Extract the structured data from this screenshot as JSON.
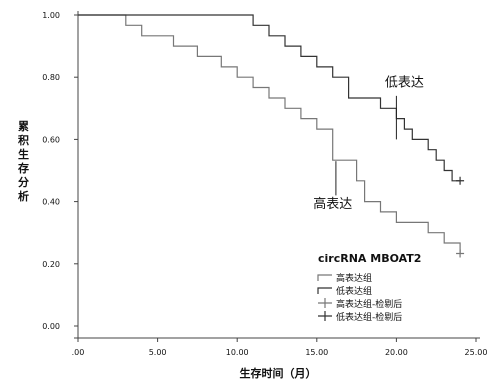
{
  "chart_data": {
    "type": "line",
    "step": true,
    "xlabel": "生存时间（月）",
    "ylabel": "累积生存分析",
    "xlim": [
      0,
      25
    ],
    "ylim": [
      0,
      1
    ],
    "x_ticks": [
      ".00",
      "5.00",
      "10.00",
      "15.00",
      "20.00",
      "25.00"
    ],
    "y_ticks": [
      "0.00",
      "0.20",
      "0.40",
      "0.60",
      "0.80",
      "1.00"
    ],
    "grid": false,
    "series": [
      {
        "name": "高表达组",
        "color": "#777777",
        "points": [
          [
            0,
            1.0
          ],
          [
            3.0,
            1.0
          ],
          [
            3.0,
            0.967
          ],
          [
            4.0,
            0.967
          ],
          [
            4.0,
            0.933
          ],
          [
            6.0,
            0.933
          ],
          [
            6.0,
            0.9
          ],
          [
            7.5,
            0.9
          ],
          [
            7.5,
            0.867
          ],
          [
            9.0,
            0.867
          ],
          [
            9.0,
            0.833
          ],
          [
            10.0,
            0.833
          ],
          [
            10.0,
            0.8
          ],
          [
            11.0,
            0.8
          ],
          [
            11.0,
            0.767
          ],
          [
            12.0,
            0.767
          ],
          [
            12.0,
            0.733
          ],
          [
            13.0,
            0.733
          ],
          [
            13.0,
            0.7
          ],
          [
            14.0,
            0.7
          ],
          [
            14.0,
            0.667
          ],
          [
            15.0,
            0.667
          ],
          [
            15.0,
            0.633
          ],
          [
            16.0,
            0.633
          ],
          [
            16.0,
            0.533
          ],
          [
            17.5,
            0.533
          ],
          [
            17.5,
            0.467
          ],
          [
            18.0,
            0.467
          ],
          [
            18.0,
            0.4
          ],
          [
            19.0,
            0.4
          ],
          [
            19.0,
            0.367
          ],
          [
            20.0,
            0.367
          ],
          [
            20.0,
            0.333
          ],
          [
            22.0,
            0.333
          ],
          [
            22.0,
            0.3
          ],
          [
            23.0,
            0.3
          ],
          [
            23.0,
            0.267
          ],
          [
            24.0,
            0.267
          ],
          [
            24.0,
            0.233
          ]
        ],
        "censored": [
          [
            24.0,
            0.233
          ]
        ]
      },
      {
        "name": "低表达组",
        "color": "#333333",
        "points": [
          [
            0,
            1.0
          ],
          [
            11.0,
            1.0
          ],
          [
            11.0,
            0.967
          ],
          [
            12.0,
            0.967
          ],
          [
            12.0,
            0.933
          ],
          [
            13.0,
            0.933
          ],
          [
            13.0,
            0.9
          ],
          [
            14.0,
            0.9
          ],
          [
            14.0,
            0.867
          ],
          [
            15.0,
            0.867
          ],
          [
            15.0,
            0.833
          ],
          [
            16.0,
            0.833
          ],
          [
            16.0,
            0.8
          ],
          [
            17.0,
            0.8
          ],
          [
            17.0,
            0.733
          ],
          [
            19.0,
            0.733
          ],
          [
            19.0,
            0.7
          ],
          [
            20.0,
            0.7
          ],
          [
            20.0,
            0.667
          ],
          [
            20.5,
            0.667
          ],
          [
            20.5,
            0.633
          ],
          [
            21.0,
            0.633
          ],
          [
            21.0,
            0.6
          ],
          [
            22.0,
            0.6
          ],
          [
            22.0,
            0.567
          ],
          [
            22.5,
            0.567
          ],
          [
            22.5,
            0.533
          ],
          [
            23.0,
            0.533
          ],
          [
            23.0,
            0.5
          ],
          [
            23.5,
            0.5
          ],
          [
            23.5,
            0.467
          ],
          [
            24.0,
            0.467
          ]
        ],
        "censored": [
          [
            24.0,
            0.467
          ]
        ]
      }
    ],
    "annotations": [
      {
        "text": "低表达",
        "x": 20.5,
        "y": 0.77,
        "line": [
          [
            20.0,
            0.74
          ],
          [
            20.0,
            0.6
          ]
        ]
      },
      {
        "text": "高表达",
        "x": 16.0,
        "y": 0.38,
        "line": [
          [
            16.2,
            0.42
          ],
          [
            16.2,
            0.53
          ]
        ]
      }
    ],
    "legend": {
      "title": "circRNA MBOAT2",
      "position": "bottom-right",
      "entries": [
        {
          "label": "高表达组",
          "kind": "step",
          "color": "#777777"
        },
        {
          "label": "低表达组",
          "kind": "step",
          "color": "#333333"
        },
        {
          "label": "高表达组-检剔后",
          "kind": "censor",
          "color": "#777777"
        },
        {
          "label": "低表达组-检剔后",
          "kind": "censor",
          "color": "#333333"
        }
      ]
    }
  }
}
